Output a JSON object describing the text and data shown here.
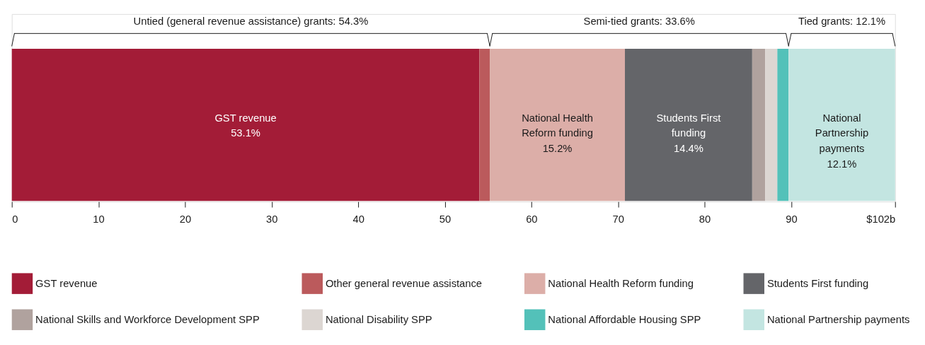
{
  "chart_data": {
    "type": "bar",
    "orientation": "horizontal",
    "stacked": true,
    "categories": [
      null
    ],
    "xlim": [
      0,
      102
    ],
    "xticks": [
      0,
      10,
      20,
      30,
      40,
      50,
      60,
      70,
      80,
      90,
      {
        "value": 102,
        "label": "$102b"
      }
    ],
    "grid": false,
    "legend": "bottom",
    "series": [
      {
        "name": "GST revenue",
        "color": "#a31c37",
        "values": [
          54.0
        ],
        "value_labels": [
          "GST revenue\n53.1%"
        ]
      },
      {
        "name": "Other general revenue assistance",
        "color": "#bb5a5c",
        "values": [
          1.2
        ],
        "value_labels": [
          null
        ]
      },
      {
        "name": "National Health Reform funding",
        "color": "#dcaea8",
        "values": [
          15.6
        ],
        "value_labels": [
          "National Health\nReform funding\n15.2%"
        ]
      },
      {
        "name": "Students First funding",
        "color": "#646569",
        "values": [
          14.7
        ],
        "value_labels": [
          "Students First\nfunding\n14.4%"
        ]
      },
      {
        "name": "National Skills and Workforce Development SPP",
        "color": "#b0a29e",
        "values": [
          1.5
        ],
        "value_labels": [
          null
        ]
      },
      {
        "name": "National Disability SPP",
        "color": "#dcd6d2",
        "values": [
          1.4
        ],
        "value_labels": [
          null
        ]
      },
      {
        "name": "National Affordable Housing SPP",
        "color": "#53c1b9",
        "values": [
          1.3
        ],
        "value_labels": [
          null
        ]
      },
      {
        "name": "National Partnership payments",
        "color": "#c3e5e1",
        "values": [
          12.3
        ],
        "value_labels": [
          "National\nPartnership\npayments\n12.1%"
        ]
      }
    ],
    "annotations": [
      "Untied (general revenue assistance) grants: 54.3%",
      "Semi-tied grants: 33.6%",
      "Tied grants: 12.1%"
    ]
  }
}
